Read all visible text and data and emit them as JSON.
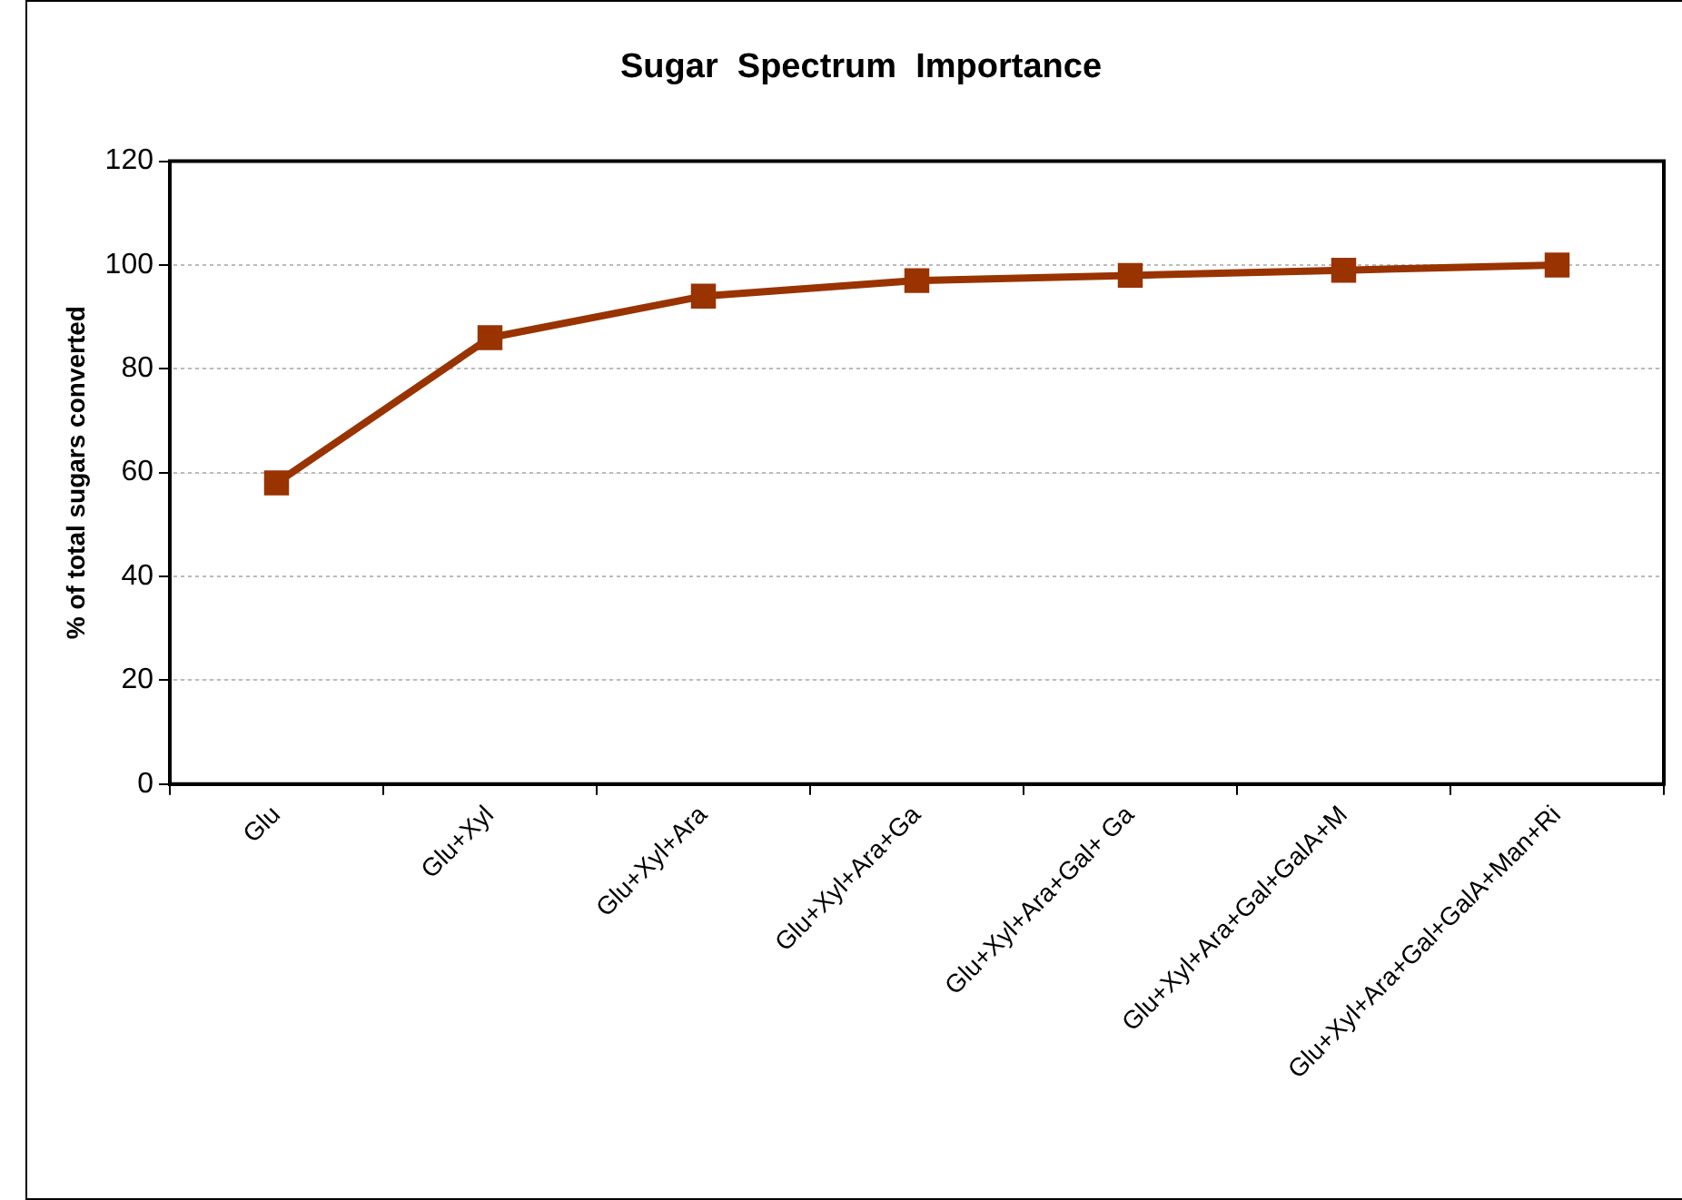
{
  "chart_data": {
    "type": "line",
    "title": "Sugar  Spectrum  Importance",
    "ylabel": "% of total sugars converted",
    "categories": [
      "Glu",
      "Glu+Xyl",
      "Glu+Xyl+Ara",
      "Glu+Xyl+Ara+Ga",
      "Glu+Xyl+Ara+Gal+ Ga",
      "Glu+Xyl+Ara+Gal+GalA+M",
      "Glu+Xyl+Ara+Gal+GalA+Man+Ri"
    ],
    "series": [
      {
        "color": "#993300",
        "values": [
          58,
          86,
          94,
          97,
          98,
          99,
          100
        ]
      }
    ],
    "ylim": [
      0,
      120
    ],
    "yticks": [
      0,
      20,
      40,
      60,
      80,
      100,
      120
    ],
    "grid": "y",
    "legend": false,
    "marker": "square",
    "line_style": "solid"
  }
}
